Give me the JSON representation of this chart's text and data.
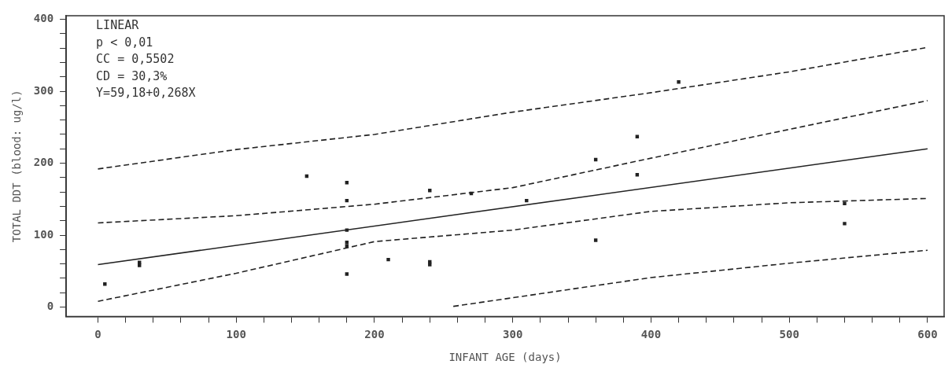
{
  "chart_data": {
    "type": "scatter",
    "xlabel": "INFANT AGE (days)",
    "ylabel": "TOTAL DDT (blood: ug/l)",
    "annotations": [
      "LINEAR",
      "p < 0,01",
      "CC = 0,5502",
      "CD = 30,3%",
      "Y=59,18+0,268X"
    ],
    "xlim": [
      -23,
      612
    ],
    "ylim": [
      -13,
      405
    ],
    "xticks": [
      0,
      {
        "value": 20,
        "label": null
      },
      {
        "value": 40,
        "label": null
      },
      {
        "value": 60,
        "label": null
      },
      {
        "value": 80,
        "label": null
      },
      100,
      {
        "value": 120,
        "label": null
      },
      {
        "value": 140,
        "label": null
      },
      {
        "value": 160,
        "label": null
      },
      {
        "value": 180,
        "label": null
      },
      200,
      {
        "value": 220,
        "label": null
      },
      {
        "value": 240,
        "label": null
      },
      {
        "value": 260,
        "label": null
      },
      {
        "value": 280,
        "label": null
      },
      300,
      {
        "value": 320,
        "label": null
      },
      {
        "value": 340,
        "label": null
      },
      {
        "value": 360,
        "label": null
      },
      {
        "value": 380,
        "label": null
      },
      400,
      {
        "value": 420,
        "label": null
      },
      {
        "value": 440,
        "label": null
      },
      {
        "value": 460,
        "label": null
      },
      {
        "value": 480,
        "label": null
      },
      500,
      {
        "value": 520,
        "label": null
      },
      {
        "value": 540,
        "label": null
      },
      {
        "value": 560,
        "label": null
      },
      {
        "value": 580,
        "label": null
      },
      600
    ],
    "yticks": [
      0,
      {
        "value": 20,
        "label": null
      },
      {
        "value": 40,
        "label": null
      },
      {
        "value": 60,
        "label": null
      },
      {
        "value": 80,
        "label": null
      },
      100,
      {
        "value": 120,
        "label": null
      },
      {
        "value": 140,
        "label": null
      },
      {
        "value": 160,
        "label": null
      },
      {
        "value": 180,
        "label": null
      },
      200,
      {
        "value": 220,
        "label": null
      },
      {
        "value": 240,
        "label": null
      },
      {
        "value": 260,
        "label": null
      },
      {
        "value": 280,
        "label": null
      },
      300,
      {
        "value": 320,
        "label": null
      },
      {
        "value": 340,
        "label": null
      },
      {
        "value": 360,
        "label": null
      },
      {
        "value": 380,
        "label": null
      },
      400
    ],
    "grid": false,
    "series": [
      {
        "type": "scatter",
        "color": "#222222",
        "marker": "square",
        "x": [
          5,
          30,
          30,
          151,
          180,
          180,
          180,
          180,
          180,
          180,
          210,
          240,
          240,
          240,
          270,
          310,
          360,
          360,
          390,
          390,
          420,
          540,
          540
        ],
        "values": [
          32,
          58,
          62,
          182,
          173,
          148,
          107,
          90,
          85,
          46,
          66,
          162,
          63,
          59,
          158,
          148,
          205,
          93,
          237,
          184,
          313,
          144,
          116
        ]
      },
      {
        "type": "line",
        "color": "#222222",
        "marker": "none",
        "line_style": "solid",
        "x": [
          0,
          600
        ],
        "values": [
          59,
          220
        ]
      },
      {
        "type": "line",
        "color": "#222222",
        "marker": "none",
        "line_style": "dashed",
        "x": [
          0,
          100,
          200,
          300,
          400,
          500,
          600
        ],
        "values": [
          192,
          219,
          240,
          271,
          298,
          327,
          361
        ]
      },
      {
        "type": "line",
        "color": "#222222",
        "marker": "none",
        "line_style": "dashed",
        "x": [
          0,
          100,
          200,
          300,
          400,
          500,
          600
        ],
        "values": [
          117,
          127,
          143,
          166,
          207,
          247,
          287
        ]
      },
      {
        "type": "line",
        "color": "#222222",
        "marker": "none",
        "line_style": "dashed",
        "x": [
          0,
          100,
          200,
          300,
          400,
          500,
          600
        ],
        "values": [
          8,
          47,
          91,
          107,
          133,
          145,
          151
        ]
      },
      {
        "type": "line",
        "color": "#222222",
        "marker": "none",
        "line_style": "dashed",
        "x": [
          257,
          300,
          400,
          500,
          600
        ],
        "values": [
          1,
          13,
          41,
          61,
          79
        ]
      }
    ]
  }
}
